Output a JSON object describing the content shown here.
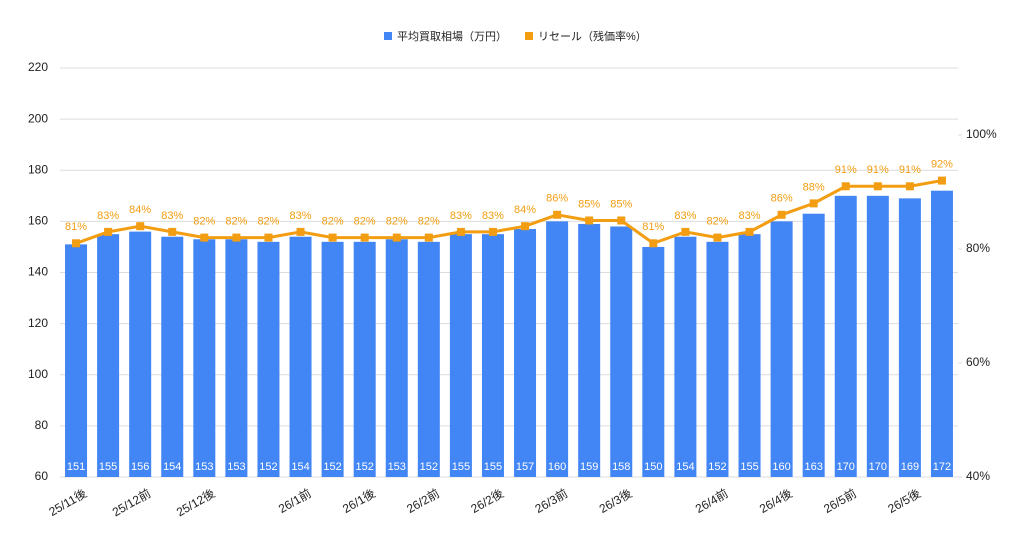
{
  "chart_data": {
    "type": "bar-line",
    "categories": [
      "25/11後",
      null,
      "25/12前",
      null,
      "25/12後",
      null,
      null,
      "26/1前",
      null,
      "26/1後",
      null,
      "26/2前",
      null,
      "26/2後",
      null,
      "26/3前",
      null,
      "26/3後",
      null,
      null,
      "26/4前",
      null,
      "26/4後",
      null,
      "26/5前",
      null,
      "26/5後",
      null
    ],
    "series": [
      {
        "name": "平均買取相場（万円）",
        "type": "bar",
        "color": "#4285f4",
        "values": [
          151,
          155,
          156,
          154,
          153,
          153,
          152,
          154,
          152,
          152,
          153,
          152,
          155,
          155,
          157,
          160,
          159,
          158,
          150,
          154,
          152,
          155,
          160,
          163,
          170,
          170,
          169,
          172
        ]
      },
      {
        "name": "リセール（残価率%）",
        "type": "line",
        "axis": "y2",
        "color": "#f29d12",
        "values": [
          81,
          83,
          84,
          83,
          82,
          82,
          82,
          83,
          82,
          82,
          82,
          82,
          83,
          83,
          84,
          86,
          85,
          85,
          81,
          83,
          82,
          83,
          86,
          88,
          91,
          91,
          91,
          92
        ],
        "value_labels": [
          "81%",
          "83%",
          "84%",
          "83%",
          "82%",
          "82%",
          "82%",
          "83%",
          "82%",
          "82%",
          "82%",
          "82%",
          "83%",
          "83%",
          "84%",
          "86%",
          "85%",
          "85%",
          "81%",
          "83%",
          "82%",
          "83%",
          "86%",
          "88%",
          "91%",
          "91%",
          "91%",
          "92%"
        ]
      }
    ],
    "ylim": [
      60,
      220
    ],
    "yticks": [
      60,
      80,
      100,
      120,
      140,
      160,
      180,
      200,
      220
    ],
    "y2lim": [
      40,
      111.75
    ],
    "y2ticks": [
      {
        "value": 40,
        "label": "40%"
      },
      {
        "value": 60,
        "label": "60%"
      },
      {
        "value": 80,
        "label": "80%"
      },
      {
        "value": 100,
        "label": "100%"
      }
    ],
    "grid": true,
    "legend": "top"
  }
}
